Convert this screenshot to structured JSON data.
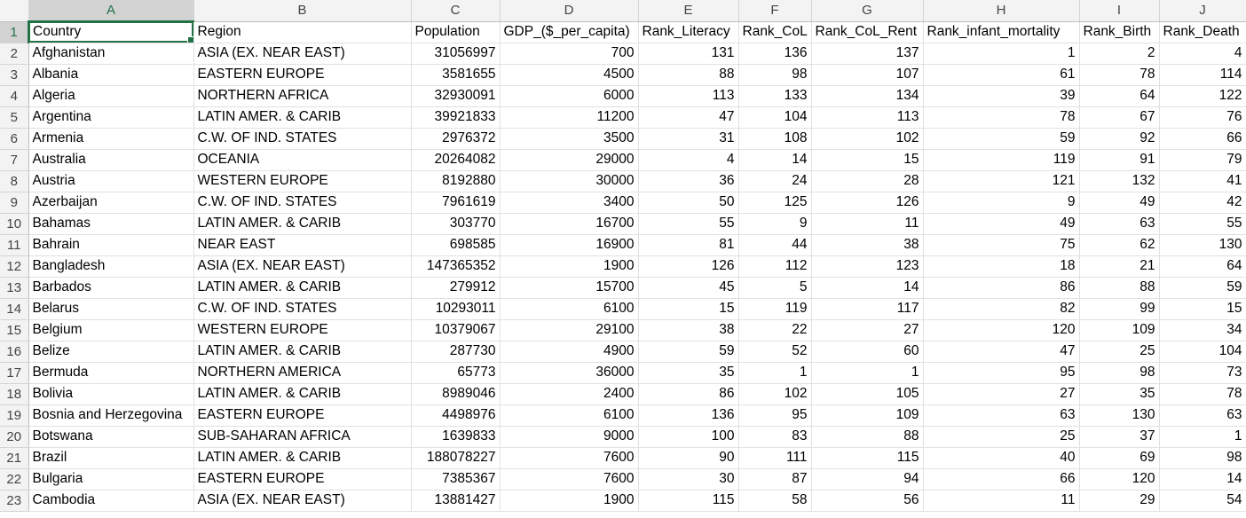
{
  "column_letters": [
    "A",
    "B",
    "C",
    "D",
    "E",
    "F",
    "G",
    "H",
    "I",
    "J"
  ],
  "selection": {
    "active_cell": "A1"
  },
  "colors": {
    "accent": "#217346",
    "header_bg": "#f3f3f3",
    "gridline": "#e1e1e1"
  },
  "rows": [
    {
      "num": "1",
      "cells": [
        "Country",
        "Region",
        "Population",
        "GDP_($_per_capita)",
        "Rank_Literacy",
        "Rank_CoL",
        "Rank_CoL_Rent",
        "Rank_infant_mortality",
        "Rank_Birth",
        "Rank_Death"
      ]
    },
    {
      "num": "2",
      "cells": [
        "Afghanistan",
        "ASIA (EX. NEAR EAST)",
        "31056997",
        "700",
        "131",
        "136",
        "137",
        "1",
        "2",
        "4"
      ]
    },
    {
      "num": "3",
      "cells": [
        "Albania",
        "EASTERN EUROPE",
        "3581655",
        "4500",
        "88",
        "98",
        "107",
        "61",
        "78",
        "114"
      ]
    },
    {
      "num": "4",
      "cells": [
        "Algeria",
        "NORTHERN AFRICA",
        "32930091",
        "6000",
        "113",
        "133",
        "134",
        "39",
        "64",
        "122"
      ]
    },
    {
      "num": "5",
      "cells": [
        "Argentina",
        "LATIN AMER. & CARIB",
        "39921833",
        "11200",
        "47",
        "104",
        "113",
        "78",
        "67",
        "76"
      ]
    },
    {
      "num": "6",
      "cells": [
        "Armenia",
        "C.W. OF IND. STATES",
        "2976372",
        "3500",
        "31",
        "108",
        "102",
        "59",
        "92",
        "66"
      ]
    },
    {
      "num": "7",
      "cells": [
        "Australia",
        "OCEANIA",
        "20264082",
        "29000",
        "4",
        "14",
        "15",
        "119",
        "91",
        "79"
      ]
    },
    {
      "num": "8",
      "cells": [
        "Austria",
        "WESTERN EUROPE",
        "8192880",
        "30000",
        "36",
        "24",
        "28",
        "121",
        "132",
        "41"
      ]
    },
    {
      "num": "9",
      "cells": [
        "Azerbaijan",
        "C.W. OF IND. STATES",
        "7961619",
        "3400",
        "50",
        "125",
        "126",
        "9",
        "49",
        "42"
      ]
    },
    {
      "num": "10",
      "cells": [
        "Bahamas",
        "LATIN AMER. & CARIB",
        "303770",
        "16700",
        "55",
        "9",
        "11",
        "49",
        "63",
        "55"
      ]
    },
    {
      "num": "11",
      "cells": [
        "Bahrain",
        "NEAR EAST",
        "698585",
        "16900",
        "81",
        "44",
        "38",
        "75",
        "62",
        "130"
      ]
    },
    {
      "num": "12",
      "cells": [
        "Bangladesh",
        "ASIA (EX. NEAR EAST)",
        "147365352",
        "1900",
        "126",
        "112",
        "123",
        "18",
        "21",
        "64"
      ]
    },
    {
      "num": "13",
      "cells": [
        "Barbados",
        "LATIN AMER. & CARIB",
        "279912",
        "15700",
        "45",
        "5",
        "14",
        "86",
        "88",
        "59"
      ]
    },
    {
      "num": "14",
      "cells": [
        "Belarus",
        "C.W. OF IND. STATES",
        "10293011",
        "6100",
        "15",
        "119",
        "117",
        "82",
        "99",
        "15"
      ]
    },
    {
      "num": "15",
      "cells": [
        "Belgium",
        "WESTERN EUROPE",
        "10379067",
        "29100",
        "38",
        "22",
        "27",
        "120",
        "109",
        "34"
      ]
    },
    {
      "num": "16",
      "cells": [
        "Belize",
        "LATIN AMER. & CARIB",
        "287730",
        "4900",
        "59",
        "52",
        "60",
        "47",
        "25",
        "104"
      ]
    },
    {
      "num": "17",
      "cells": [
        "Bermuda",
        "NORTHERN AMERICA",
        "65773",
        "36000",
        "35",
        "1",
        "1",
        "95",
        "98",
        "73"
      ]
    },
    {
      "num": "18",
      "cells": [
        "Bolivia",
        "LATIN AMER. & CARIB",
        "8989046",
        "2400",
        "86",
        "102",
        "105",
        "27",
        "35",
        "78"
      ]
    },
    {
      "num": "19",
      "cells": [
        "Bosnia and Herzegovina",
        "EASTERN EUROPE",
        "4498976",
        "6100",
        "136",
        "95",
        "109",
        "63",
        "130",
        "63"
      ]
    },
    {
      "num": "20",
      "cells": [
        "Botswana",
        "SUB-SAHARAN AFRICA",
        "1639833",
        "9000",
        "100",
        "83",
        "88",
        "25",
        "37",
        "1"
      ]
    },
    {
      "num": "21",
      "cells": [
        "Brazil",
        "LATIN AMER. & CARIB",
        "188078227",
        "7600",
        "90",
        "111",
        "115",
        "40",
        "69",
        "98"
      ]
    },
    {
      "num": "22",
      "cells": [
        "Bulgaria",
        "EASTERN EUROPE",
        "7385367",
        "7600",
        "30",
        "87",
        "94",
        "66",
        "120",
        "14"
      ]
    },
    {
      "num": "23",
      "cells": [
        "Cambodia",
        "ASIA (EX. NEAR EAST)",
        "13881427",
        "1900",
        "115",
        "58",
        "56",
        "11",
        "29",
        "54"
      ]
    }
  ]
}
